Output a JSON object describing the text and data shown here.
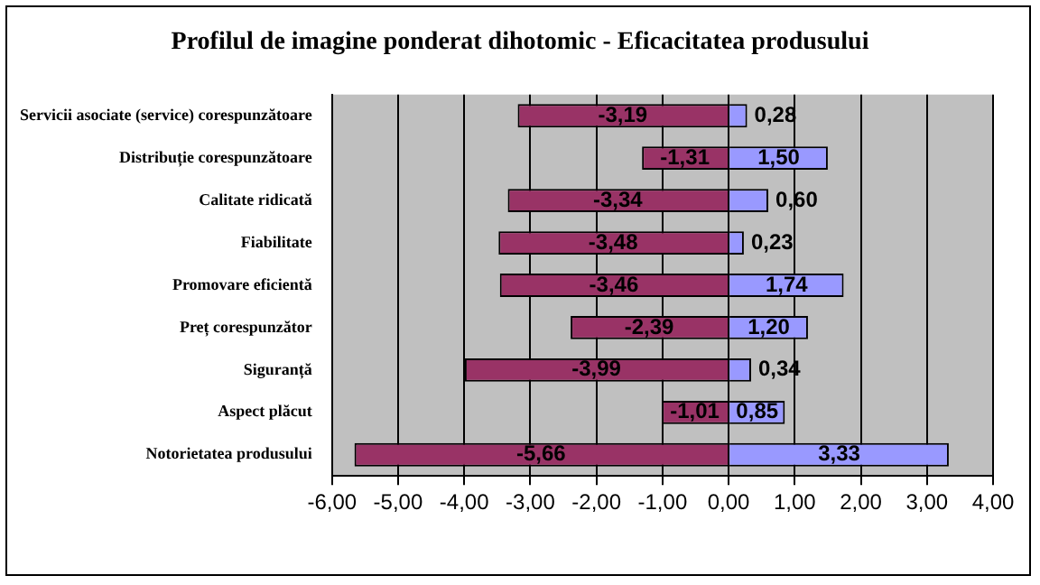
{
  "chart_data": {
    "type": "bar",
    "orientation": "horizontal",
    "stacked": true,
    "title": "Profilul de imagine ponderat dihotomic - Eficacitatea produsului",
    "categories": [
      "Servicii asociate (service) corespunzătoare",
      "Distribuție corespunzătoare",
      "Calitate ridicată",
      "Fiabilitate",
      "Promovare eficientă",
      "Preț corespunzător",
      "Siguranță",
      "Aspect plăcut",
      "Notorietatea produsului"
    ],
    "series": [
      {
        "color": "#993366",
        "values": [
          -3.19,
          -1.31,
          -3.34,
          -3.48,
          -3.46,
          -2.39,
          -3.99,
          -1.01,
          -5.66
        ],
        "value_labels": [
          "-3,19",
          "-1,31",
          "-3,34",
          "-3,48",
          "-3,46",
          "-2,39",
          "-3,99",
          "-1,01",
          "-5,66"
        ]
      },
      {
        "color": "#9999ff",
        "values": [
          0.28,
          1.5,
          0.6,
          0.23,
          1.74,
          1.2,
          0.34,
          0.85,
          3.33
        ],
        "value_labels": [
          "0,28",
          "1,50",
          "0,60",
          "0,23",
          "1,74",
          "1,20",
          "0,34",
          "0,85",
          "3,33"
        ]
      }
    ],
    "xlim": [
      -6,
      4
    ],
    "xticks": [
      {
        "value": -6,
        "label": "-6,00"
      },
      {
        "value": -5,
        "label": "-5,00"
      },
      {
        "value": -4,
        "label": "-4,00"
      },
      {
        "value": -3,
        "label": "-3,00"
      },
      {
        "value": -2,
        "label": "-2,00"
      },
      {
        "value": -1,
        "label": "-1,00"
      },
      {
        "value": 0,
        "label": "0,00"
      },
      {
        "value": 1,
        "label": "1,00"
      },
      {
        "value": 2,
        "label": "2,00"
      },
      {
        "value": 3,
        "label": "3,00"
      },
      {
        "value": 4,
        "label": "4,00"
      }
    ],
    "grid": "x",
    "legend": false
  }
}
